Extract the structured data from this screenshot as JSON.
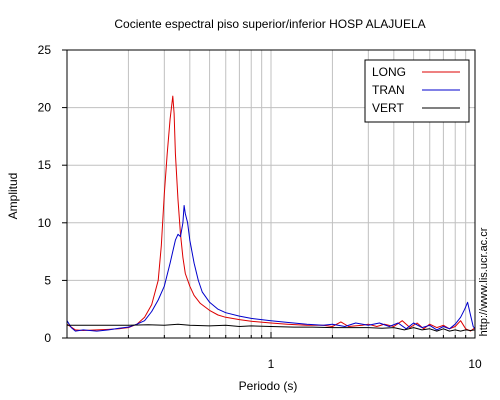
{
  "chart_data": {
    "type": "line",
    "title": "Cociente espectral piso superior/inferior  HOSP ALAJUELA",
    "xlabel": "Periodo (s)",
    "ylabel": "Amplitud",
    "x_scale": "log",
    "xlim": [
      0.1,
      10
    ],
    "ylim": [
      0,
      25
    ],
    "x_ticks": [
      1,
      10
    ],
    "x_tick_labels": [
      "1",
      "10"
    ],
    "y_ticks": [
      0,
      5,
      10,
      15,
      20,
      25
    ],
    "y_tick_labels": [
      "0",
      "5",
      "10",
      "15",
      "20",
      "25"
    ],
    "grid": true,
    "legend_position": "top-right",
    "side_text": "http://www.lis.ucr.ac.cr",
    "series": [
      {
        "name": "LONG",
        "color": "#dd0000",
        "points": [
          [
            0.1,
            1.2
          ],
          [
            0.11,
            0.7
          ],
          [
            0.12,
            0.65
          ],
          [
            0.14,
            0.7
          ],
          [
            0.16,
            0.75
          ],
          [
            0.18,
            0.8
          ],
          [
            0.2,
            0.9
          ],
          [
            0.22,
            1.2
          ],
          [
            0.24,
            1.8
          ],
          [
            0.26,
            2.9
          ],
          [
            0.28,
            5.0
          ],
          [
            0.29,
            8.0
          ],
          [
            0.3,
            12.5
          ],
          [
            0.31,
            16.0
          ],
          [
            0.32,
            19.0
          ],
          [
            0.33,
            21.0
          ],
          [
            0.335,
            19.5
          ],
          [
            0.34,
            16.0
          ],
          [
            0.35,
            12.0
          ],
          [
            0.36,
            9.0
          ],
          [
            0.37,
            7.0
          ],
          [
            0.38,
            5.6
          ],
          [
            0.4,
            4.5
          ],
          [
            0.42,
            3.7
          ],
          [
            0.45,
            3.0
          ],
          [
            0.5,
            2.4
          ],
          [
            0.55,
            2.0
          ],
          [
            0.6,
            1.8
          ],
          [
            0.7,
            1.6
          ],
          [
            0.8,
            1.45
          ],
          [
            1.0,
            1.3
          ],
          [
            1.2,
            1.2
          ],
          [
            1.5,
            1.1
          ],
          [
            1.8,
            1.1
          ],
          [
            2.0,
            1.0
          ],
          [
            2.2,
            1.4
          ],
          [
            2.4,
            1.0
          ],
          [
            2.8,
            1.1
          ],
          [
            3.0,
            1.2
          ],
          [
            3.3,
            1.0
          ],
          [
            3.6,
            1.2
          ],
          [
            4.0,
            1.0
          ],
          [
            4.4,
            1.5
          ],
          [
            4.8,
            0.9
          ],
          [
            5.2,
            1.3
          ],
          [
            5.6,
            0.8
          ],
          [
            6.0,
            1.2
          ],
          [
            6.5,
            0.9
          ],
          [
            7.0,
            1.1
          ],
          [
            7.5,
            0.8
          ],
          [
            8.0,
            1.0
          ],
          [
            8.5,
            1.5
          ],
          [
            9.0,
            0.8
          ],
          [
            9.5,
            0.6
          ],
          [
            10.0,
            0.9
          ]
        ]
      },
      {
        "name": "TRAN",
        "color": "#0000cc",
        "points": [
          [
            0.1,
            1.5
          ],
          [
            0.105,
            0.9
          ],
          [
            0.11,
            0.6
          ],
          [
            0.12,
            0.7
          ],
          [
            0.14,
            0.6
          ],
          [
            0.16,
            0.7
          ],
          [
            0.18,
            0.85
          ],
          [
            0.2,
            0.95
          ],
          [
            0.22,
            1.2
          ],
          [
            0.24,
            1.5
          ],
          [
            0.26,
            2.3
          ],
          [
            0.28,
            3.3
          ],
          [
            0.3,
            4.5
          ],
          [
            0.32,
            6.5
          ],
          [
            0.34,
            8.5
          ],
          [
            0.35,
            9.0
          ],
          [
            0.36,
            8.8
          ],
          [
            0.37,
            10.0
          ],
          [
            0.375,
            11.5
          ],
          [
            0.38,
            10.8
          ],
          [
            0.39,
            10.0
          ],
          [
            0.4,
            8.5
          ],
          [
            0.42,
            6.5
          ],
          [
            0.44,
            5.0
          ],
          [
            0.46,
            4.0
          ],
          [
            0.5,
            3.1
          ],
          [
            0.55,
            2.5
          ],
          [
            0.6,
            2.2
          ],
          [
            0.7,
            1.9
          ],
          [
            0.8,
            1.7
          ],
          [
            1.0,
            1.5
          ],
          [
            1.2,
            1.35
          ],
          [
            1.5,
            1.2
          ],
          [
            1.8,
            1.1
          ],
          [
            2.0,
            1.2
          ],
          [
            2.3,
            1.0
          ],
          [
            2.6,
            1.3
          ],
          [
            3.0,
            1.1
          ],
          [
            3.4,
            1.3
          ],
          [
            3.8,
            1.0
          ],
          [
            4.2,
            1.3
          ],
          [
            4.6,
            0.8
          ],
          [
            5.0,
            1.3
          ],
          [
            5.5,
            0.9
          ],
          [
            6.0,
            1.1
          ],
          [
            6.5,
            0.7
          ],
          [
            7.0,
            1.0
          ],
          [
            7.5,
            0.8
          ],
          [
            8.0,
            1.2
          ],
          [
            8.5,
            1.8
          ],
          [
            8.9,
            2.5
          ],
          [
            9.2,
            3.1
          ],
          [
            9.5,
            2.0
          ],
          [
            9.8,
            1.0
          ],
          [
            10.0,
            0.8
          ]
        ]
      },
      {
        "name": "VERT",
        "color": "#000000",
        "points": [
          [
            0.1,
            1.1
          ],
          [
            0.12,
            1.1
          ],
          [
            0.15,
            1.1
          ],
          [
            0.2,
            1.1
          ],
          [
            0.25,
            1.15
          ],
          [
            0.3,
            1.1
          ],
          [
            0.35,
            1.2
          ],
          [
            0.4,
            1.1
          ],
          [
            0.5,
            1.05
          ],
          [
            0.6,
            1.1
          ],
          [
            0.7,
            1.0
          ],
          [
            0.8,
            1.05
          ],
          [
            1.0,
            1.0
          ],
          [
            1.3,
            0.95
          ],
          [
            1.6,
            0.95
          ],
          [
            2.0,
            0.9
          ],
          [
            2.5,
            0.9
          ],
          [
            3.0,
            0.9
          ],
          [
            3.5,
            0.85
          ],
          [
            4.0,
            0.9
          ],
          [
            4.5,
            0.7
          ],
          [
            5.0,
            0.9
          ],
          [
            5.5,
            0.7
          ],
          [
            6.0,
            0.8
          ],
          [
            6.5,
            0.6
          ],
          [
            7.0,
            0.8
          ],
          [
            7.5,
            0.6
          ],
          [
            8.0,
            0.7
          ],
          [
            8.5,
            0.6
          ],
          [
            9.0,
            0.7
          ],
          [
            9.5,
            0.65
          ],
          [
            10.0,
            0.7
          ]
        ]
      }
    ]
  }
}
